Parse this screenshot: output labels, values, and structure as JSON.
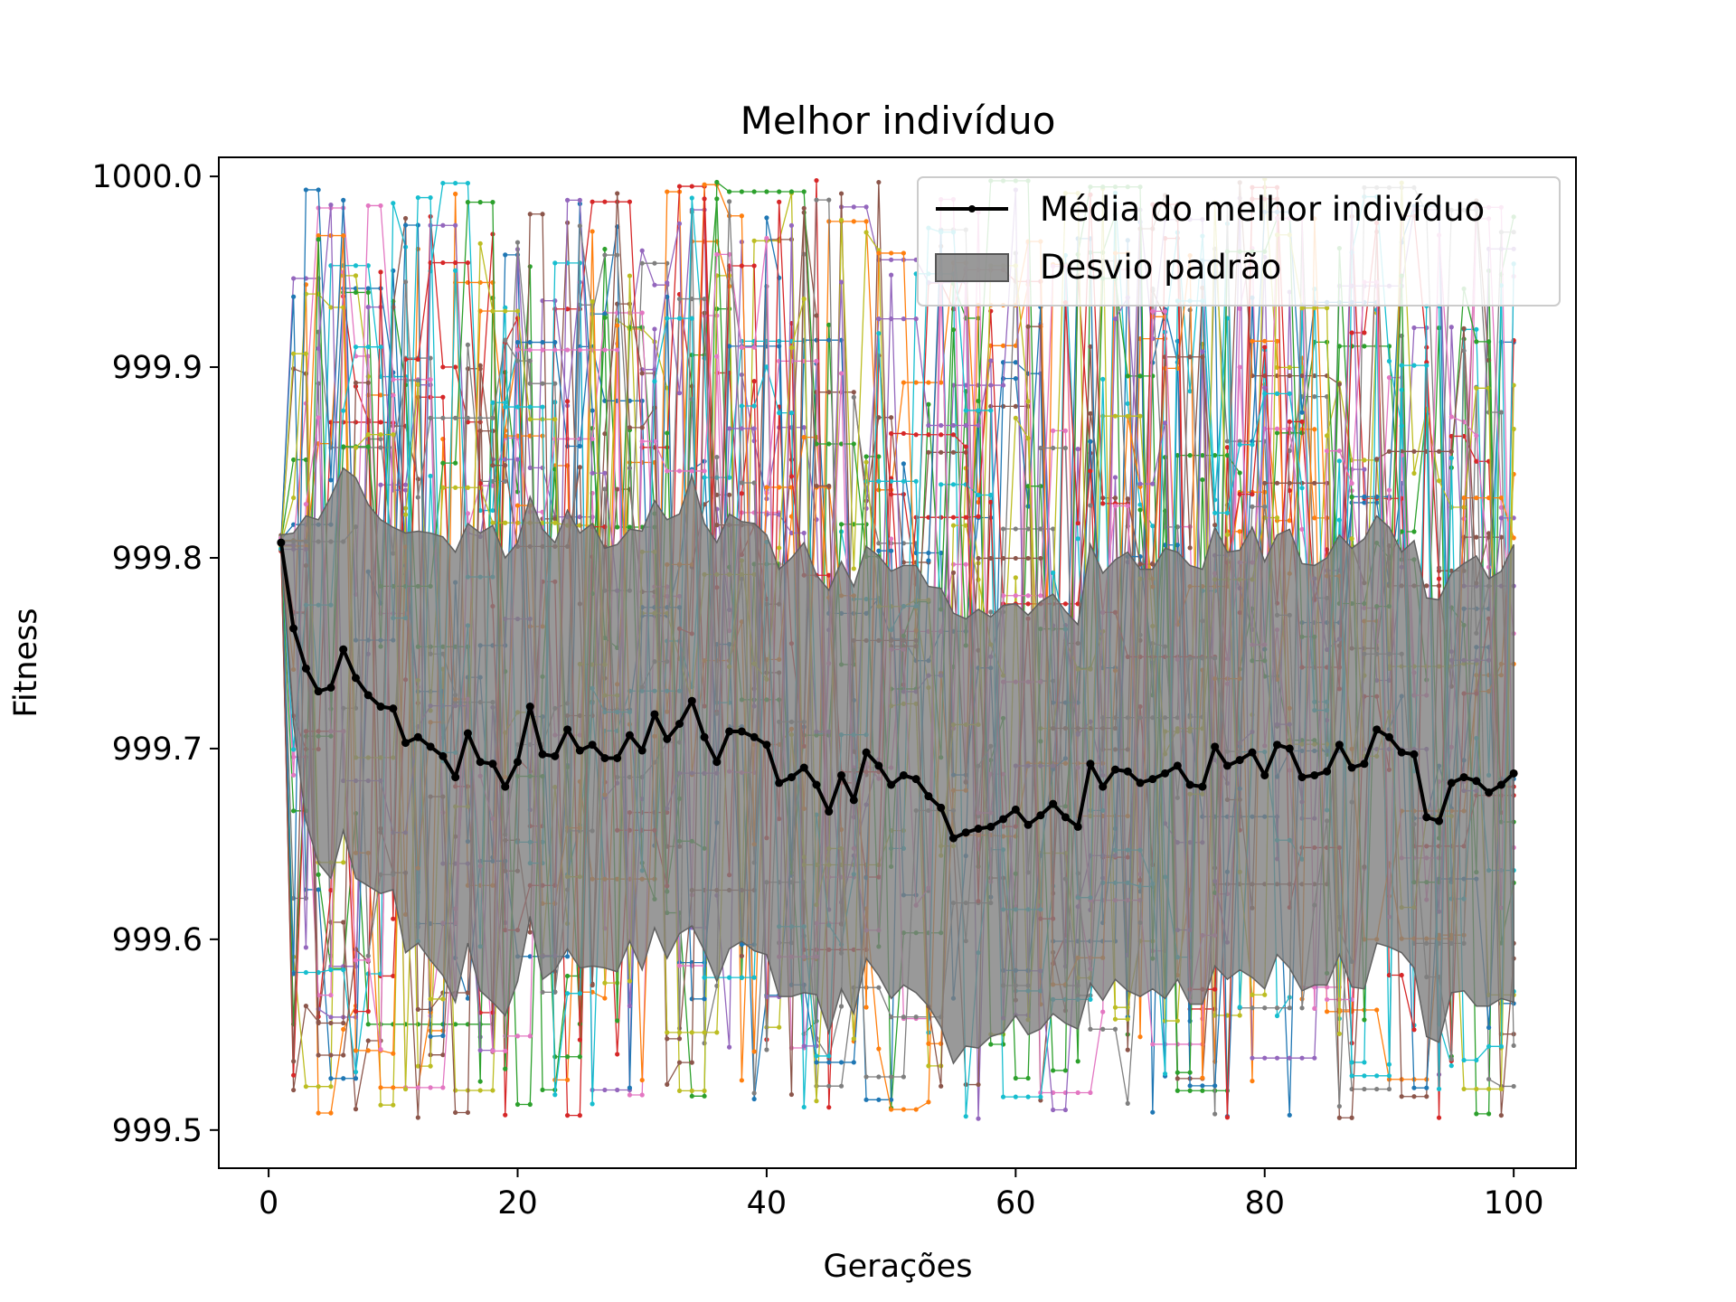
{
  "chart_data": {
    "type": "line",
    "title": "Melhor indivíduo",
    "xlabel": "Gerações",
    "ylabel": "Fitness",
    "xlim": [
      -4,
      105
    ],
    "ylim": [
      999.48,
      1000.01
    ],
    "xticks": [
      0,
      20,
      40,
      60,
      80,
      100
    ],
    "yticks": [
      999.5,
      999.6,
      999.7,
      999.8,
      999.9,
      1000.0
    ],
    "xtick_labels": [
      "0",
      "20",
      "40",
      "60",
      "80",
      "100"
    ],
    "ytick_labels": [
      "999.5",
      "999.6",
      "999.7",
      "999.8",
      "999.9",
      "1000.0"
    ],
    "grid": false,
    "legend_position": "top-right",
    "legend": [
      {
        "label": "Média do melhor indivíduo",
        "kind": "line",
        "color": "#000000"
      },
      {
        "label": "Desvio padrão",
        "kind": "patch",
        "color": "#808080"
      }
    ],
    "x": [
      1,
      2,
      3,
      4,
      5,
      6,
      7,
      8,
      9,
      10,
      11,
      12,
      13,
      14,
      15,
      16,
      17,
      18,
      19,
      20,
      21,
      22,
      23,
      24,
      25,
      26,
      27,
      28,
      29,
      30,
      31,
      32,
      33,
      34,
      35,
      36,
      37,
      38,
      39,
      40,
      41,
      42,
      43,
      44,
      45,
      46,
      47,
      48,
      49,
      50,
      51,
      52,
      53,
      54,
      55,
      56,
      57,
      58,
      59,
      60,
      61,
      62,
      63,
      64,
      65,
      66,
      67,
      68,
      69,
      70,
      71,
      72,
      73,
      74,
      75,
      76,
      77,
      78,
      79,
      80,
      81,
      82,
      83,
      84,
      85,
      86,
      87,
      88,
      89,
      90,
      91,
      92,
      93,
      94,
      95,
      96,
      97,
      98,
      99,
      100
    ],
    "series": [
      {
        "name": "Média do melhor indivíduo",
        "color": "#000000",
        "values": [
          999.808,
          999.763,
          999.742,
          999.73,
          999.732,
          999.752,
          999.737,
          999.728,
          999.722,
          999.721,
          999.703,
          999.706,
          999.701,
          999.696,
          999.685,
          999.708,
          999.693,
          999.692,
          999.68,
          999.693,
          999.722,
          999.697,
          999.696,
          999.71,
          999.699,
          999.702,
          999.695,
          999.695,
          999.707,
          999.699,
          999.718,
          999.705,
          999.713,
          999.725,
          999.706,
          999.693,
          999.709,
          999.709,
          999.706,
          999.702,
          999.682,
          999.685,
          999.69,
          999.681,
          999.667,
          999.686,
          999.673,
          999.698,
          999.691,
          999.681,
          999.686,
          999.684,
          999.675,
          999.669,
          999.653,
          999.656,
          999.658,
          999.659,
          999.663,
          999.668,
          999.66,
          999.665,
          999.671,
          999.664,
          999.659,
          999.692,
          999.68,
          999.689,
          999.688,
          999.682,
          999.684,
          999.687,
          999.691,
          999.681,
          999.68,
          999.701,
          999.691,
          999.694,
          999.698,
          999.686,
          999.702,
          999.7,
          999.685,
          999.686,
          999.688,
          999.702,
          999.69,
          999.692,
          999.71,
          999.706,
          999.698,
          999.697,
          999.664,
          999.662,
          999.682,
          999.685,
          999.683,
          999.677,
          999.681,
          999.687
        ]
      }
    ],
    "std_band": {
      "name": "Desvio padrão",
      "color": "#808080",
      "half_width": [
        0.004,
        0.05,
        0.08,
        0.09,
        0.1,
        0.095,
        0.105,
        0.1,
        0.098,
        0.095,
        0.11,
        0.108,
        0.112,
        0.115,
        0.118,
        0.11,
        0.12,
        0.125,
        0.12,
        0.115,
        0.11,
        0.118,
        0.112,
        0.115,
        0.114,
        0.116,
        0.11,
        0.112,
        0.108,
        0.115,
        0.112,
        0.115,
        0.11,
        0.118,
        0.112,
        0.115,
        0.114,
        0.11,
        0.112,
        0.11,
        0.112,
        0.115,
        0.118,
        0.11,
        0.116,
        0.112,
        0.112,
        0.108,
        0.11,
        0.112,
        0.11,
        0.112,
        0.11,
        0.115,
        0.118,
        0.112,
        0.115,
        0.11,
        0.112,
        0.108,
        0.11,
        0.112,
        0.11,
        0.108,
        0.106,
        0.115,
        0.112,
        0.11,
        0.115,
        0.112,
        0.11,
        0.118,
        0.112,
        0.115,
        0.114,
        0.115,
        0.112,
        0.11,
        0.118,
        0.112,
        0.11,
        0.115,
        0.112,
        0.11,
        0.112,
        0.11,
        0.115,
        0.118,
        0.112,
        0.11,
        0.105,
        0.112,
        0.115,
        0.116,
        0.11,
        0.112,
        0.118,
        0.112,
        0.112,
        0.12
      ]
    },
    "individual_runs": {
      "count": 30,
      "value_range": [
        999.505,
        999.999
      ],
      "colors": [
        "#1f77b4",
        "#ff7f0e",
        "#2ca02c",
        "#d62728",
        "#9467bd",
        "#8c564b",
        "#e377c2",
        "#7f7f7f",
        "#bcbd22",
        "#17becf"
      ]
    }
  }
}
